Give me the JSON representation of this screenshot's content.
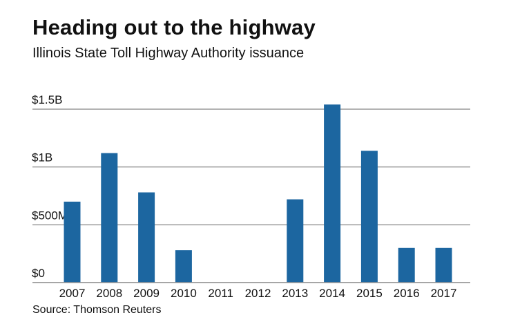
{
  "title": "Heading out to the highway",
  "subtitle": "Illinois State Toll Highway Authority issuance",
  "source": "Source: Thomson Reuters",
  "chart_data": {
    "type": "bar",
    "title": "Heading out to the highway",
    "subtitle": "Illinois State Toll Highway Authority issuance",
    "xlabel": "",
    "ylabel": "",
    "categories": [
      "2007",
      "2008",
      "2009",
      "2010",
      "2011",
      "2012",
      "2013",
      "2014",
      "2015",
      "2016",
      "2017"
    ],
    "values": [
      0.7,
      1.12,
      0.78,
      0.28,
      0,
      0,
      0.72,
      1.54,
      1.14,
      0.3,
      0.3
    ],
    "unit": "billions of dollars",
    "ylim": [
      0,
      1.5
    ],
    "yticks": [
      {
        "value": 0,
        "label": "$0"
      },
      {
        "value": 0.5,
        "label": "$500M"
      },
      {
        "value": 1,
        "label": "$1B"
      },
      {
        "value": 1.5,
        "label": "$1.5B"
      }
    ],
    "grid": true,
    "bar_color": "#1c66a0",
    "grid_color": "#9a9a9a"
  }
}
